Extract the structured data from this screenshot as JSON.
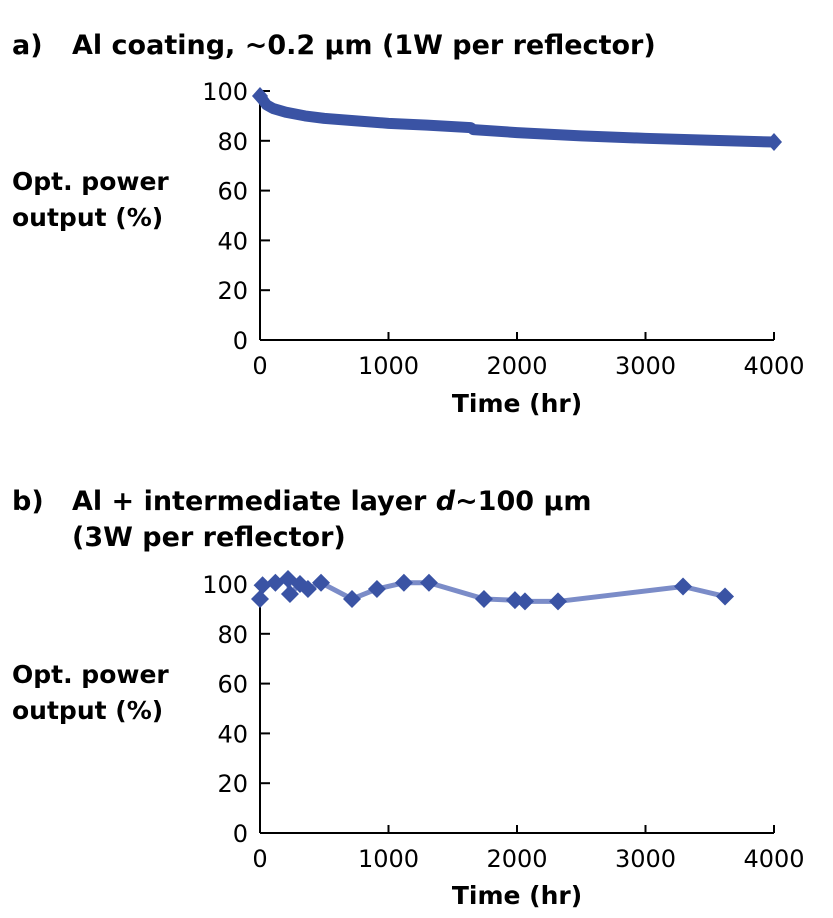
{
  "chart_data": [
    {
      "type": "line",
      "title_prefix": "a)",
      "title": "Al coating, ~0.2 µm (1W per reflector)",
      "xlabel": "Time (hr)",
      "ylabel_lines": [
        "Opt. power",
        "output (%)"
      ],
      "xlim": [
        0,
        4000
      ],
      "ylim": [
        0,
        100
      ],
      "xticks": [
        0,
        1000,
        2000,
        3000,
        4000
      ],
      "yticks": [
        0,
        20,
        40,
        60,
        80,
        100
      ],
      "color": "#3a53a4",
      "x": [
        0,
        50,
        100,
        200,
        350,
        500,
        750,
        1000,
        1300,
        1640,
        1660,
        2000,
        2500,
        3000,
        3500,
        4000
      ],
      "y": [
        98,
        94.5,
        93,
        91.5,
        90,
        89,
        88,
        87,
        86.3,
        85.3,
        84.5,
        83.3,
        82,
        81,
        80.2,
        79.5
      ]
    },
    {
      "type": "line",
      "title_prefix": "b)",
      "title_lines": [
        "Al + intermediate layer ",
        "d",
        "~100 µm",
        "(3W per reflector)"
      ],
      "xlabel": "Time (hr)",
      "ylabel_lines": [
        "Opt. power",
        "output (%)"
      ],
      "xlim": [
        0,
        4000
      ],
      "ylim": [
        0,
        100
      ],
      "xticks": [
        0,
        1000,
        2000,
        3000,
        4000
      ],
      "yticks": [
        0,
        20,
        40,
        60,
        80,
        100
      ],
      "color": "#3a53a4",
      "line_color": "#7b8cc8",
      "x": [
        0,
        20,
        120,
        218,
        233,
        311,
        373,
        475,
        716,
        910,
        1120,
        1315,
        1743,
        1984,
        2062,
        2319,
        3292,
        3619
      ],
      "y": [
        94,
        99.5,
        100.5,
        102,
        96,
        100,
        98,
        100.5,
        94,
        98,
        100.5,
        100.5,
        94,
        93.5,
        93,
        93,
        99,
        95
      ]
    }
  ]
}
